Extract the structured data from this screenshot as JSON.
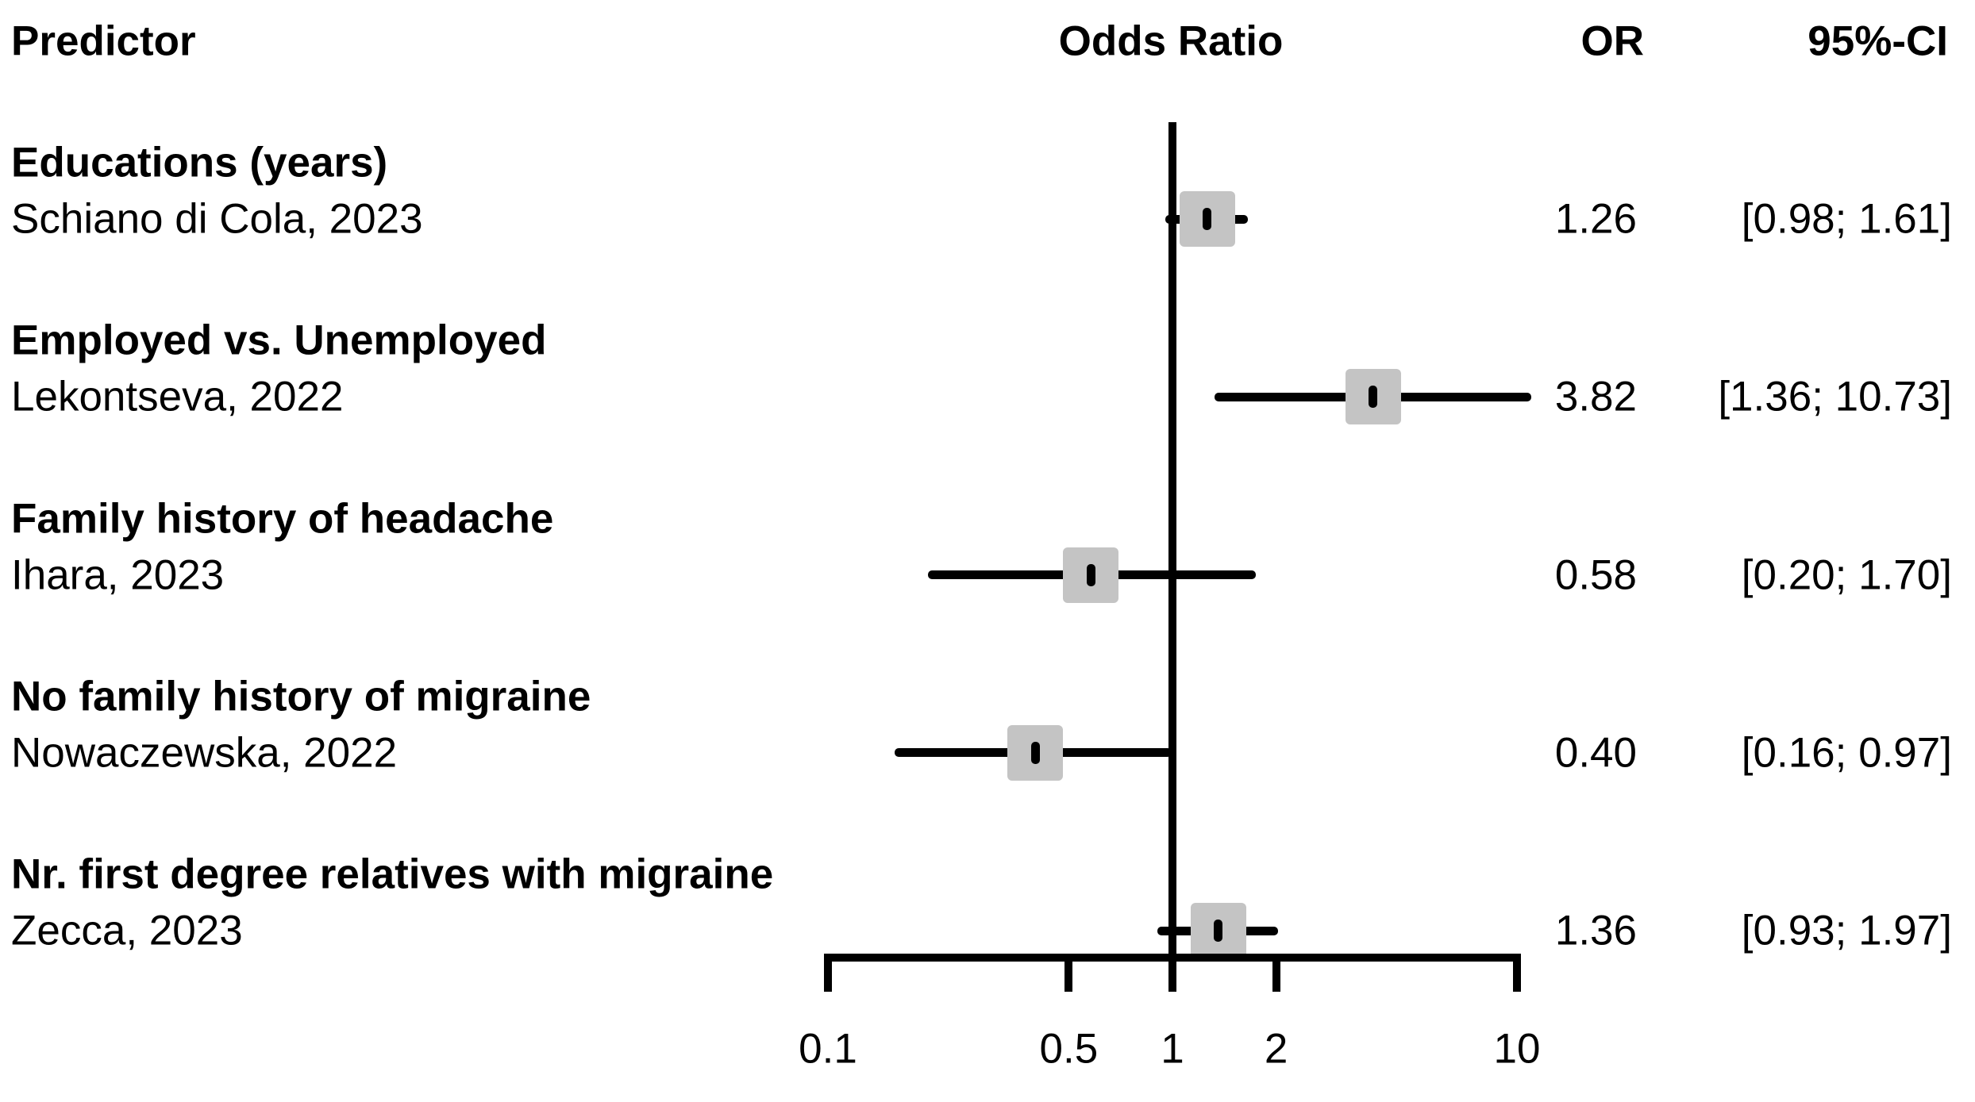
{
  "header": {
    "predictor": "Predictor",
    "plot": "Odds Ratio",
    "or": "OR",
    "ci": "95%-CI"
  },
  "chart_data": {
    "type": "forest",
    "title": "",
    "xlabel": "",
    "scale": "log10",
    "x_axis": {
      "range": [
        0.1,
        10
      ],
      "ticks": [
        0.1,
        0.5,
        1,
        2,
        10
      ],
      "tick_labels": [
        "0.1",
        "0.5",
        "1",
        "2",
        "10"
      ],
      "reference_line": 1
    },
    "columns": [
      "Predictor",
      "Odds Ratio",
      "OR",
      "95%-CI"
    ],
    "rows": [
      {
        "group": "Educations (years)",
        "study": "Schiano di Cola, 2023",
        "or": 1.26,
        "ci_low": 0.98,
        "ci_high": 1.61,
        "or_label": "1.26",
        "ci_label": "[0.98; 1.61]"
      },
      {
        "group": "Employed vs. Unemployed",
        "study": "Lekontseva, 2022",
        "or": 3.82,
        "ci_low": 1.36,
        "ci_high": 10.73,
        "or_label": "3.82",
        "ci_label": "[1.36; 10.73]"
      },
      {
        "group": "Family history of headache",
        "study": "Ihara, 2023",
        "or": 0.58,
        "ci_low": 0.2,
        "ci_high": 1.7,
        "or_label": "0.58",
        "ci_label": "[0.20; 1.70]"
      },
      {
        "group": "No family history of migraine",
        "study": "Nowaczewska, 2022",
        "or": 0.4,
        "ci_low": 0.16,
        "ci_high": 0.97,
        "or_label": "0.40",
        "ci_label": "[0.16; 0.97]"
      },
      {
        "group": "Nr. first degree relatives with migraine",
        "study": "Zecca, 2023",
        "or": 1.36,
        "ci_low": 0.93,
        "ci_high": 1.97,
        "or_label": "1.36",
        "ci_label": "[0.93; 1.97]"
      }
    ]
  },
  "colors": {
    "text": "#000000",
    "line": "#000000",
    "marker_square": "#c4c4c4",
    "background": "#ffffff"
  }
}
